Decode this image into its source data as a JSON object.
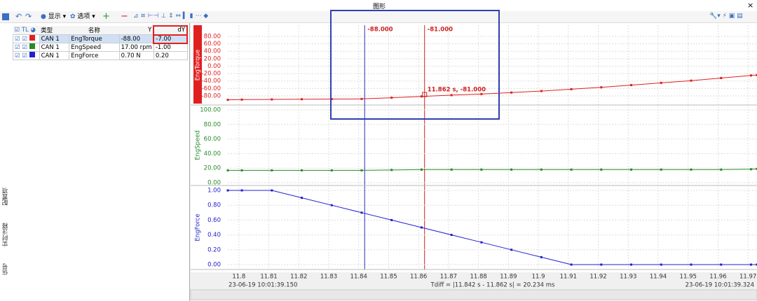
{
  "window": {
    "title": "图形",
    "close": "×"
  },
  "toolbar": {
    "display": "显示",
    "options": "选项"
  },
  "side_tabs": [
    "配置项",
    "实时注释",
    "信号"
  ],
  "signal_table": {
    "headers": [
      "类型",
      "名称",
      "Y",
      "dY"
    ],
    "rows": [
      [
        "CAN 1",
        "EngTorque",
        "-88.00",
        "-7.00"
      ],
      [
        "CAN 1",
        "EngSpeed",
        "17.00 rpm",
        "-1.00"
      ],
      [
        "CAN 1",
        "EngForce",
        "0.70 N",
        "0.20"
      ]
    ]
  },
  "chart_data": [
    {
      "type": "line",
      "ylabel": "EngTorque",
      "color": "#e02020",
      "x": [
        11.7963,
        11.801,
        11.811,
        11.821,
        11.831,
        11.841,
        11.851,
        11.861,
        11.871,
        11.881,
        11.891,
        11.901,
        11.911,
        11.921,
        11.931,
        11.941,
        11.951,
        11.961,
        11.971,
        11.973
      ],
      "values": [
        -90.5,
        -90,
        -89.5,
        -89,
        -88.6,
        -88.1,
        -85,
        -81.4,
        -78,
        -75,
        -71,
        -67,
        -62,
        -57,
        -51,
        -45,
        -39,
        -32,
        -25,
        -24
      ],
      "xlim": [
        11.7963,
        11.973
      ],
      "ylim": [
        -104.5,
        110.1
      ],
      "yticks": [
        {
          "value": 80,
          "label": "80.00"
        },
        {
          "value": 60,
          "label": "60.00"
        },
        {
          "value": 40,
          "label": "40.00"
        },
        {
          "value": 20,
          "label": "20.00"
        },
        {
          "value": 0,
          "label": "0.00"
        },
        {
          "value": -20,
          "label": "-20.00"
        },
        {
          "value": -40,
          "label": "-40.00"
        },
        {
          "value": -60,
          "label": "-60.00"
        },
        {
          "value": -80,
          "label": "-80.00"
        }
      ],
      "cursors": [
        11.842,
        11.862
      ],
      "cursor_labels": [
        "-88.000",
        "-81.000"
      ],
      "point_label": "11.862 s, -81.000"
    },
    {
      "type": "line",
      "ylabel": "EngSpeed",
      "color": "#2a8a2a",
      "x": [
        11.7963,
        11.801,
        11.811,
        11.821,
        11.831,
        11.841,
        11.851,
        11.861,
        11.871,
        11.881,
        11.891,
        11.901,
        11.911,
        11.921,
        11.931,
        11.941,
        11.951,
        11.961,
        11.971,
        11.973
      ],
      "values": [
        17,
        17,
        17,
        17,
        17,
        17,
        17.5,
        18,
        18,
        18,
        18,
        18,
        18,
        18,
        18,
        18,
        18,
        18,
        18.5,
        19
      ],
      "xlim": [
        11.7963,
        11.973
      ],
      "ylim": [
        -3.8,
        106.7
      ],
      "yticks": [
        {
          "value": 100,
          "label": "100.00"
        },
        {
          "value": 80,
          "label": "80.00"
        },
        {
          "value": 60,
          "label": "60.00"
        },
        {
          "value": 40,
          "label": "40.00"
        },
        {
          "value": 20,
          "label": "20.00"
        },
        {
          "value": 0,
          "label": "0.00"
        }
      ]
    },
    {
      "type": "line",
      "ylabel": "EngForce",
      "color": "#2020d0",
      "x": [
        11.7963,
        11.801,
        11.811,
        11.821,
        11.831,
        11.841,
        11.851,
        11.861,
        11.871,
        11.881,
        11.891,
        11.901,
        11.911,
        11.921,
        11.931,
        11.941,
        11.951,
        11.961,
        11.971,
        11.973
      ],
      "values": [
        1,
        1,
        1,
        0.9,
        0.8,
        0.7,
        0.6,
        0.5,
        0.4,
        0.3,
        0.2,
        0.1,
        0,
        0,
        0,
        0,
        0,
        0,
        0,
        0
      ],
      "xlim": [
        11.7963,
        11.973
      ],
      "ylim": [
        -0.066,
        1.066
      ],
      "yticks": [
        {
          "value": 1,
          "label": "1.00"
        },
        {
          "value": 0.8,
          "label": "0.80"
        },
        {
          "value": 0.6,
          "label": "0.60"
        },
        {
          "value": 0.4,
          "label": "0.40"
        },
        {
          "value": 0.2,
          "label": "0.20"
        },
        {
          "value": 0,
          "label": "0.00"
        }
      ],
      "xticks": [
        11.8,
        11.81,
        11.82,
        11.83,
        11.84,
        11.85,
        11.86,
        11.87,
        11.88,
        11.89,
        11.9,
        11.91,
        11.92,
        11.93,
        11.94,
        11.95,
        11.96,
        11.97
      ]
    }
  ],
  "status": {
    "start": "23-06-19 10:01:39.150",
    "tdiff": "Tdiff = |11.842 s - 11.862 s| = 20.234 ms",
    "end": "23-06-19 10:01:39.324"
  }
}
